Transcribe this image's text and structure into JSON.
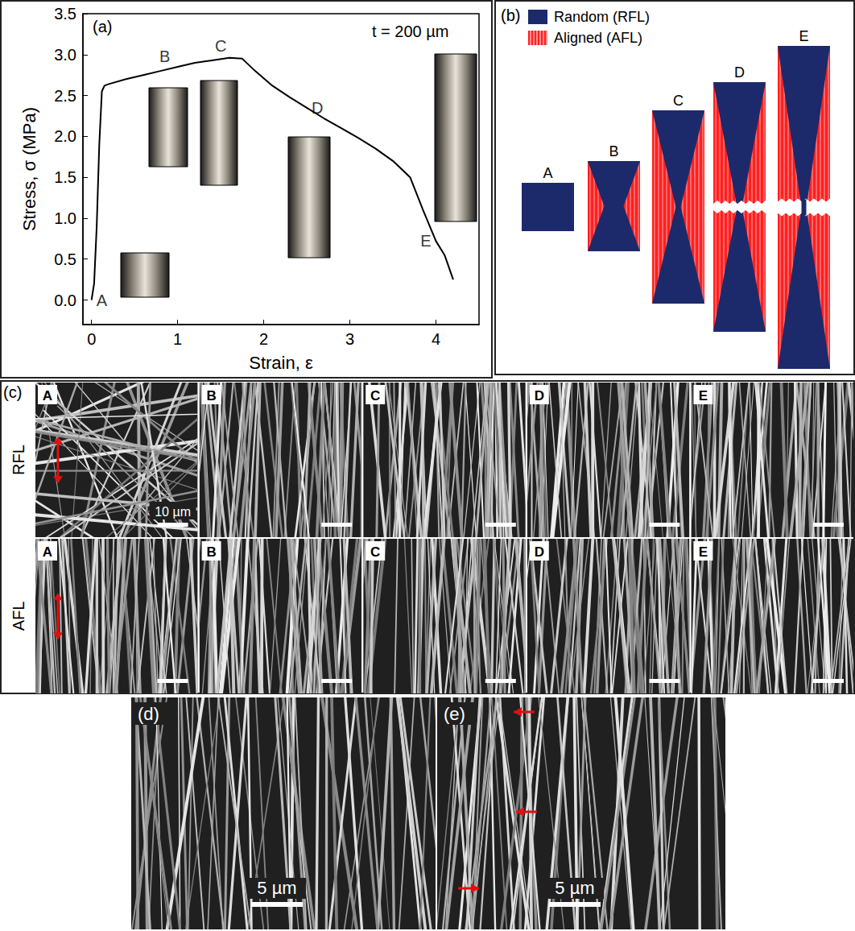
{
  "chart_data": {
    "type": "line",
    "title": "(a)",
    "x_label": "Strain, ε",
    "y_label": "Stress, σ (MPa)",
    "annotations": [
      {
        "text": "t = 200 µm"
      }
    ],
    "x": [
      0,
      0.03,
      0.06,
      0.09,
      0.12,
      0.15,
      0.2,
      0.4,
      0.6,
      0.8,
      1.0,
      1.2,
      1.4,
      1.6,
      1.75,
      1.9,
      2.1,
      2.3,
      2.5,
      2.7,
      2.9,
      3.1,
      3.3,
      3.5,
      3.7,
      3.85,
      4.0,
      4.1,
      4.2
    ],
    "values": [
      0,
      0.2,
      0.9,
      1.9,
      2.55,
      2.62,
      2.64,
      2.7,
      2.75,
      2.8,
      2.85,
      2.9,
      2.93,
      2.96,
      2.95,
      2.8,
      2.62,
      2.48,
      2.35,
      2.22,
      2.1,
      1.98,
      1.85,
      1.7,
      1.5,
      1.1,
      0.72,
      0.55,
      0.25
    ],
    "color": "#000000",
    "point_labels": [
      {
        "text": "A",
        "x": 0,
        "y": 0
      },
      {
        "text": "B",
        "x": 0.85,
        "y": 2.82
      },
      {
        "text": "C",
        "x": 1.5,
        "y": 2.95
      },
      {
        "text": "D",
        "x": 2.5,
        "y": 2.35
      },
      {
        "text": "E",
        "x": 4.0,
        "y": 0.72
      }
    ],
    "xlim": [
      -0.1,
      4.5
    ],
    "xticks": [
      0,
      1,
      2,
      3,
      4
    ],
    "ylim": [
      -0.3,
      3.5
    ],
    "yticks": [
      {
        "value": 0,
        "label": "0.0"
      },
      {
        "value": 0.5,
        "label": "0.5"
      },
      {
        "value": 1,
        "label": "1.0"
      },
      {
        "value": 1.5,
        "label": "1.5"
      },
      {
        "value": 2,
        "label": "2.0"
      },
      {
        "value": 2.5,
        "label": "2.5"
      },
      {
        "value": 3,
        "label": "3.0"
      },
      {
        "value": 3.5,
        "label": "3.5"
      }
    ],
    "grid": false
  },
  "panels": {
    "b": {
      "label": "(b)",
      "legend": [
        {
          "text": "Random (RFL)",
          "color": "#1c2a6b"
        },
        {
          "text": "Aligned (AFL)",
          "color": "#ff2020"
        }
      ],
      "stages": [
        "A",
        "B",
        "C",
        "D",
        "E"
      ]
    },
    "c": {
      "label": "(c)",
      "rows": [
        "RFL",
        "AFL"
      ],
      "columns": [
        "A",
        "B",
        "C",
        "D",
        "E"
      ],
      "scale_bar": "10 µm"
    },
    "d": {
      "label": "(d)",
      "scale_bar": "5 µm"
    },
    "e": {
      "label": "(e)",
      "scale_bar": "5 µm"
    }
  }
}
